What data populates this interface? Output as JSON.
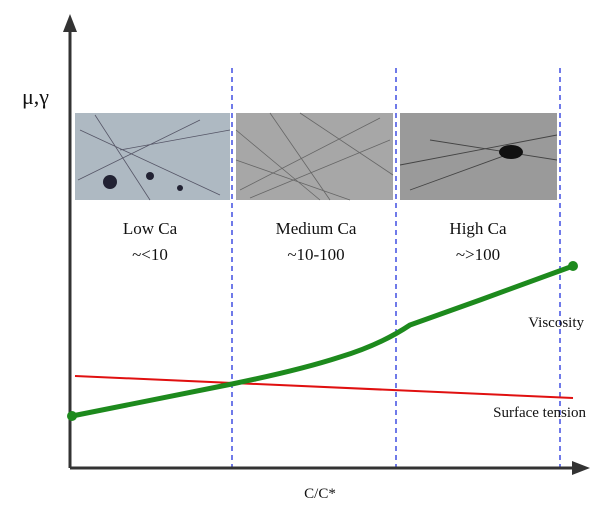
{
  "axes": {
    "y_label": "μ,γ",
    "x_label": "C/C*"
  },
  "regions": [
    {
      "name": "Low Ca",
      "range": "~<10"
    },
    {
      "name": "Medium Ca",
      "range": "~10-100"
    },
    {
      "name": "High Ca",
      "range": "~>100"
    }
  ],
  "curves": {
    "viscosity": "Viscosity",
    "surface_tension": "Surface tension"
  }
}
